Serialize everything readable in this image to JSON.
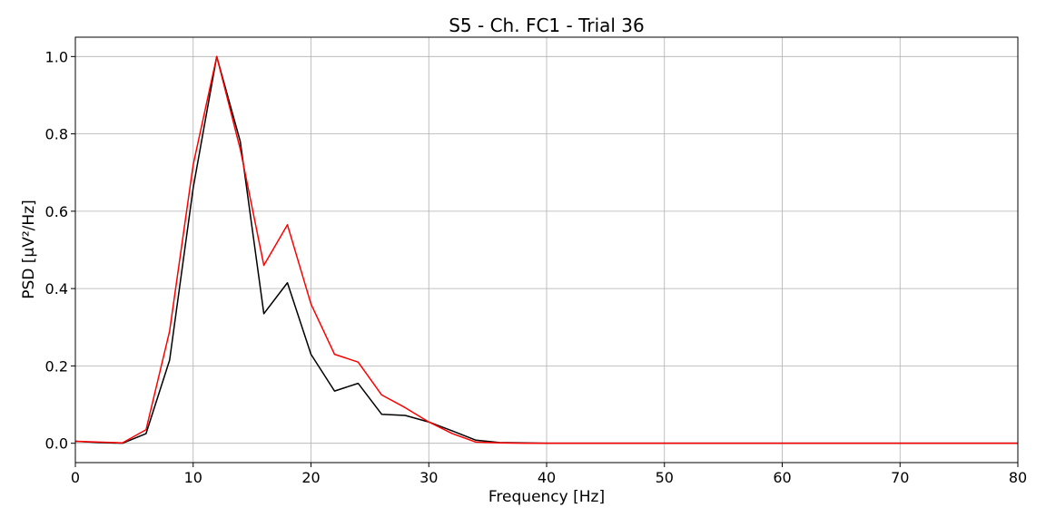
{
  "chart_data": {
    "type": "line",
    "title": "S5 - Ch. FC1 - Trial 36",
    "xlabel": "Frequency [Hz]",
    "ylabel": "PSD [μV²/Hz]",
    "xlim": [
      0,
      80
    ],
    "ylim": [
      -0.05,
      1.05
    ],
    "x_ticks": [
      0,
      10,
      20,
      30,
      40,
      50,
      60,
      70,
      80
    ],
    "x_tick_labels": [
      "0",
      "10",
      "20",
      "30",
      "40",
      "50",
      "60",
      "70",
      "80"
    ],
    "y_ticks": [
      0.0,
      0.2,
      0.4,
      0.6,
      0.8,
      1.0
    ],
    "y_tick_labels": [
      "0.0",
      "0.2",
      "0.4",
      "0.6",
      "0.8",
      "1.0"
    ],
    "grid": true,
    "x": [
      0,
      2,
      4,
      6,
      8,
      10,
      12,
      14,
      16,
      18,
      20,
      22,
      24,
      26,
      28,
      30,
      32,
      34,
      36,
      38,
      40,
      42,
      44,
      46,
      48,
      50,
      52,
      54,
      56,
      58,
      60,
      62,
      64,
      66,
      68,
      70,
      72,
      74,
      76,
      78,
      80
    ],
    "series": [
      {
        "color": "#000000",
        "values": [
          0.005,
          0.002,
          0.0,
          0.025,
          0.215,
          0.66,
          1.0,
          0.78,
          0.335,
          0.415,
          0.23,
          0.135,
          0.155,
          0.075,
          0.072,
          0.055,
          0.032,
          0.008,
          0.002,
          0.001,
          0.0,
          0.0,
          0.0,
          0.0,
          0.0,
          0.0,
          0.0,
          0.0,
          0.0,
          0.0,
          0.0,
          0.0,
          0.0,
          0.0,
          0.0,
          0.0,
          0.0,
          0.0,
          0.0,
          0.0,
          0.0
        ]
      },
      {
        "color": "#ff0000",
        "values": [
          0.005,
          0.003,
          0.001,
          0.035,
          0.29,
          0.72,
          1.0,
          0.76,
          0.46,
          0.565,
          0.36,
          0.23,
          0.21,
          0.125,
          0.092,
          0.055,
          0.025,
          0.003,
          0.001,
          0.0,
          0.0,
          0.0,
          0.0,
          0.0,
          0.0,
          0.0,
          0.0,
          0.0,
          0.0,
          0.0,
          0.0,
          0.0,
          0.0,
          0.0,
          0.0,
          0.0,
          0.0,
          0.0,
          0.0,
          0.0,
          0.0
        ]
      }
    ]
  }
}
